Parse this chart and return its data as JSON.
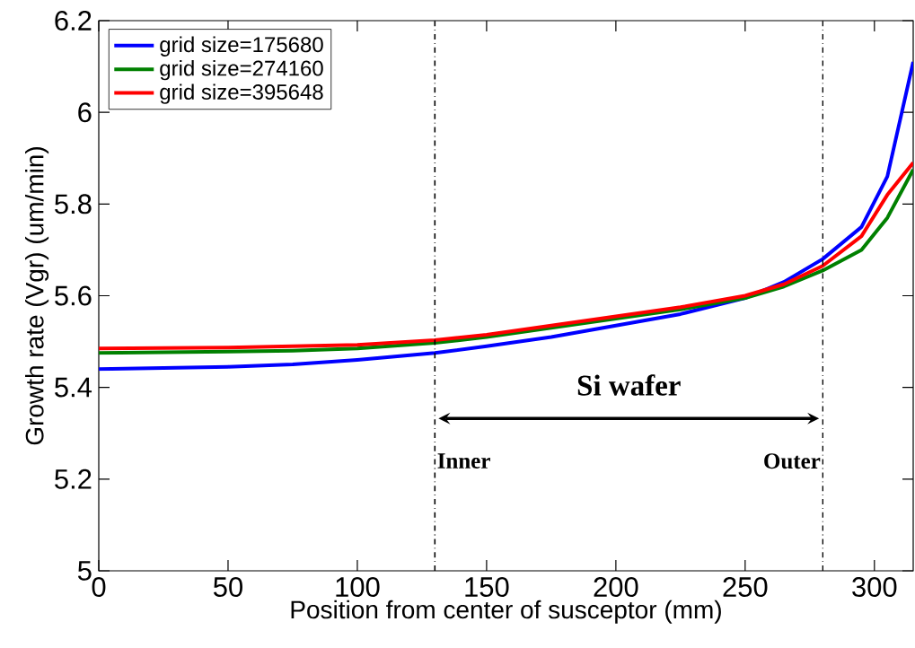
{
  "chart_data": {
    "type": "line",
    "xlabel": "Position from center of susceptor (mm)",
    "ylabel": "Growth rate (Vgr) (um/min)",
    "x": [
      0,
      50,
      75,
      100,
      130,
      150,
      175,
      200,
      225,
      250,
      265,
      280,
      295,
      305,
      315
    ],
    "series": [
      {
        "name": "grid size=175680",
        "color": "#0000ff",
        "values": [
          5.44,
          5.445,
          5.45,
          5.46,
          5.475,
          5.49,
          5.51,
          5.535,
          5.56,
          5.595,
          5.63,
          5.68,
          5.75,
          5.86,
          6.11
        ]
      },
      {
        "name": "grid size=274160",
        "color": "#008000",
        "values": [
          5.475,
          5.478,
          5.48,
          5.485,
          5.497,
          5.51,
          5.53,
          5.55,
          5.57,
          5.595,
          5.62,
          5.655,
          5.7,
          5.77,
          5.875
        ]
      },
      {
        "name": "grid size=395648",
        "color": "#ff0000",
        "values": [
          5.485,
          5.487,
          5.49,
          5.493,
          5.503,
          5.515,
          5.535,
          5.555,
          5.575,
          5.6,
          5.625,
          5.665,
          5.73,
          5.82,
          5.89
        ]
      }
    ],
    "xlim": [
      0,
      315
    ],
    "ylim": [
      5,
      6.2
    ],
    "xticks": [
      0,
      50,
      100,
      150,
      200,
      250,
      300
    ],
    "yticks": [
      5,
      5.2,
      5.4,
      5.6,
      5.8,
      6,
      6.2
    ],
    "ref_lines": [
      {
        "axis": "x",
        "value": 130,
        "label": "Inner",
        "color": "#000000",
        "line_style": "dashdot"
      },
      {
        "axis": "x",
        "value": 280,
        "label": "Outer",
        "color": "#000000",
        "line_style": "dashdot"
      }
    ],
    "annotations": [
      "Si wafer"
    ],
    "legend": "top left",
    "grid": false,
    "marker": "none",
    "line_style": "solid"
  }
}
